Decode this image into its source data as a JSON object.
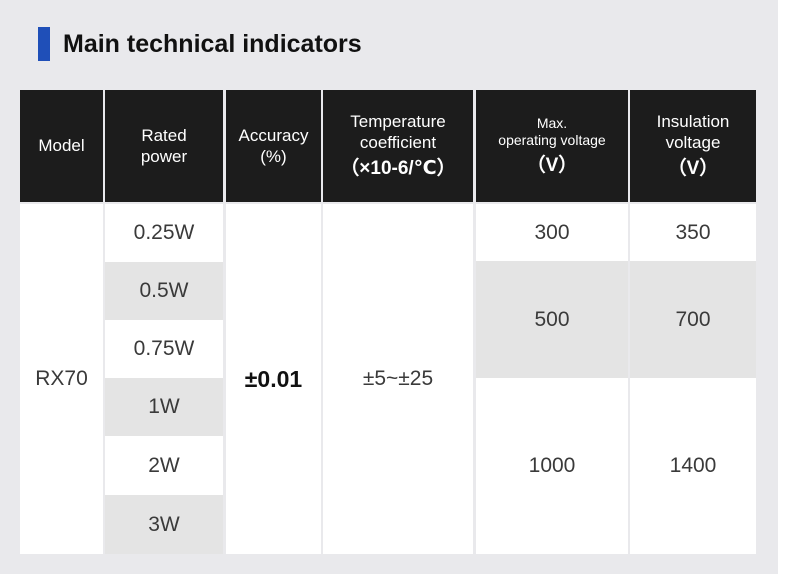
{
  "title": "Main technical indicators",
  "accent_color": "#1f4fb8",
  "header": {
    "model": "Model",
    "rated_power": [
      "Rated",
      "power"
    ],
    "accuracy": [
      "Accuracy",
      "(%)"
    ],
    "temperature": [
      "Temperature",
      "coefficient",
      "（×10-6/℃）"
    ],
    "max_voltage": [
      "Max.",
      "operating voltage",
      "（V）"
    ],
    "insulation_voltage": [
      "Insulation",
      "voltage",
      "（V）"
    ]
  },
  "model": "RX70",
  "rated_power": [
    "0.25W",
    "0.5W",
    "0.75W",
    "1W",
    "2W",
    "3W"
  ],
  "accuracy": "±0.01",
  "temperature_coefficient": "±5~±25",
  "max_operating_voltage": [
    "300",
    "500",
    "1000"
  ],
  "insulation_voltage": [
    "350",
    "700",
    "1400"
  ]
}
